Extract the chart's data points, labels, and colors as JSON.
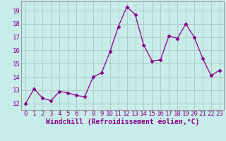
{
  "x": [
    0,
    1,
    2,
    3,
    4,
    5,
    6,
    7,
    8,
    9,
    10,
    11,
    12,
    13,
    14,
    15,
    16,
    17,
    18,
    19,
    20,
    21,
    22,
    23
  ],
  "y": [
    12.0,
    13.1,
    12.4,
    12.2,
    12.9,
    12.8,
    12.6,
    12.5,
    14.0,
    14.3,
    15.9,
    17.8,
    19.3,
    18.7,
    16.4,
    15.2,
    15.3,
    17.1,
    16.9,
    18.0,
    17.0,
    15.4,
    14.1,
    14.5
  ],
  "line_color": "#880088",
  "marker": "D",
  "marker_size": 2.5,
  "bg_color": "#c8ecea",
  "grid_color": "#b0ccc8",
  "xlabel": "Windchill (Refroidissement éolien,°C)",
  "xlim": [
    -0.5,
    23.5
  ],
  "ylim": [
    11.5,
    19.7
  ],
  "yticks": [
    12,
    13,
    14,
    15,
    16,
    17,
    18,
    19
  ],
  "xticks": [
    0,
    1,
    2,
    3,
    4,
    5,
    6,
    7,
    8,
    9,
    10,
    11,
    12,
    13,
    14,
    15,
    16,
    17,
    18,
    19,
    20,
    21,
    22,
    23
  ],
  "label_color": "#880088",
  "tick_color": "#880088",
  "spine_color": "#888888",
  "tick_fontsize": 6.5,
  "xlabel_fontsize": 7.0
}
